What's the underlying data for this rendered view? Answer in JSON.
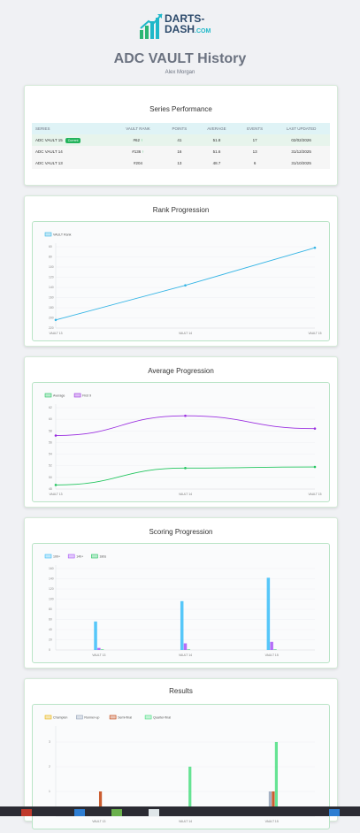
{
  "brand": {
    "name_line1": "DARTS-",
    "name_line2": "DASH",
    "name_suffix": ".COM"
  },
  "page": {
    "title": "ADC VAULT History",
    "subtitle": "Alex Morgan"
  },
  "series_performance": {
    "title": "Series Performance",
    "columns": [
      "SERIES",
      "VAULT RANK",
      "POINTS",
      "AVERAGE",
      "EVENTS",
      "LAST UPDATED"
    ],
    "current_badge": "Current",
    "rows": [
      {
        "series": "ADC VAULT 15",
        "rank": "#62",
        "trend": "↑",
        "points": "41",
        "average": "51.8",
        "events": "17",
        "updated": "02/02/2026"
      },
      {
        "series": "ADC VAULT 14",
        "rank": "#136",
        "trend": "↑",
        "points": "16",
        "average": "51.6",
        "events": "13",
        "updated": "31/12/2025"
      },
      {
        "series": "ADC VAULT 13",
        "rank": "#204",
        "trend": "",
        "points": "13",
        "average": "48.7",
        "events": "6",
        "updated": "31/10/2025"
      }
    ]
  },
  "chart_data": [
    {
      "type": "line",
      "title": "Rank Progression",
      "categories": [
        "VAULT 13",
        "VAULT 14",
        "VAULT 15"
      ],
      "series": [
        {
          "name": "VAULT Rank",
          "values": [
            204,
            136,
            62
          ],
          "color": "#36b5e5"
        }
      ],
      "yticks": [
        "60",
        "80",
        "100",
        "120",
        "140",
        "160",
        "180",
        "200",
        "220"
      ],
      "ylim": [
        220,
        60
      ],
      "reverse_y": true,
      "legend": "top-left"
    },
    {
      "type": "line",
      "title": "Average Progression",
      "categories": [
        "VAULT 13",
        "VAULT 14",
        "VAULT 15"
      ],
      "series": [
        {
          "name": "Average",
          "values": [
            48.7,
            51.6,
            51.8
          ],
          "color": "#22c55e"
        },
        {
          "name": "First 9",
          "values": [
            57.2,
            60.6,
            58.4
          ],
          "color": "#9b30e0"
        }
      ],
      "yticks": [
        "48",
        "50",
        "52",
        "54",
        "56",
        "58",
        "60",
        "62"
      ],
      "ylim": [
        48,
        62
      ],
      "legend": "top-left"
    },
    {
      "type": "bar",
      "title": "Scoring Progression",
      "categories": [
        "VAULT 13",
        "VAULT 14",
        "VAULT 15"
      ],
      "series": [
        {
          "name": "100+",
          "values": [
            56,
            96,
            142
          ],
          "color": "#38bdf8"
        },
        {
          "name": "140+",
          "values": [
            4,
            13,
            16
          ],
          "color": "#a855f7"
        },
        {
          "name": "180s",
          "values": [
            1,
            1,
            1
          ],
          "color": "#22c55e"
        }
      ],
      "yticks": [
        "0",
        "20",
        "40",
        "60",
        "80",
        "100",
        "120",
        "140",
        "160"
      ],
      "ylim": [
        0,
        160
      ],
      "legend": "top-left"
    },
    {
      "type": "bar",
      "title": "Results",
      "categories": [
        "VAULT 13",
        "VAULT 14",
        "VAULT 15"
      ],
      "series": [
        {
          "name": "Champion",
          "values": [
            0,
            0,
            0
          ],
          "color": "#eab308"
        },
        {
          "name": "Runner-up",
          "values": [
            0,
            0,
            1
          ],
          "color": "#94a3b8"
        },
        {
          "name": "Semi-final",
          "values": [
            1,
            0,
            1
          ],
          "color": "#c2410c"
        },
        {
          "name": "Quarter-final",
          "values": [
            0,
            2,
            3
          ],
          "color": "#4ade80"
        }
      ],
      "yticks": [
        "1",
        "2",
        "3"
      ],
      "ylim": [
        0,
        3.5
      ],
      "legend": "top-left"
    }
  ]
}
